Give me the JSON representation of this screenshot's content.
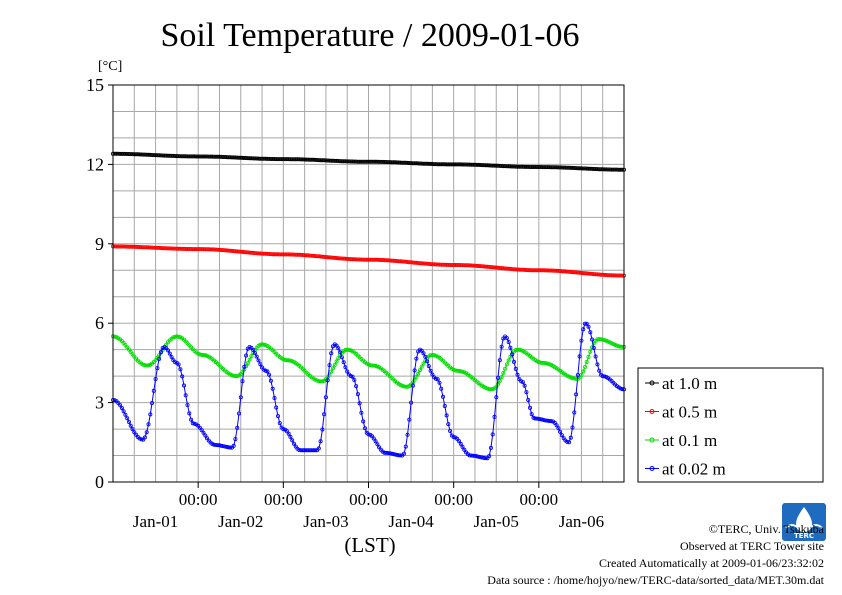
{
  "chart_data": {
    "type": "line",
    "title": "Soil Temperature / 2009-01-06",
    "ylabel": "[°C]",
    "xlabel": "(LST)",
    "ylim": [
      0,
      15
    ],
    "yticks": [
      "0",
      "3",
      "6",
      "9",
      "12",
      "15"
    ],
    "x_time_labels": [
      "00:00",
      "00:00",
      "00:00",
      "00:00",
      "00:00"
    ],
    "x_date_labels": [
      "Jan-01",
      "Jan-02",
      "Jan-03",
      "Jan-04",
      "Jan-05",
      "Jan-06"
    ],
    "x_range_days": [
      0,
      6
    ],
    "grid": true,
    "legend_placement": "right",
    "series": [
      {
        "name": "at 1.0 m",
        "color": "#000000",
        "x": [
          0,
          1,
          2,
          3,
          4,
          5,
          6
        ],
        "y": [
          12.4,
          12.3,
          12.2,
          12.1,
          12.0,
          11.9,
          11.8
        ]
      },
      {
        "name": "at 0.5 m",
        "color": "#ff0000",
        "x": [
          0,
          1,
          2,
          3,
          4,
          5,
          6
        ],
        "y": [
          8.9,
          8.8,
          8.6,
          8.4,
          8.2,
          8.0,
          7.8
        ]
      },
      {
        "name": "at 0.1 m",
        "color": "#00dd00",
        "x": [
          0,
          0.4,
          0.75,
          1.05,
          1.45,
          1.75,
          2.05,
          2.45,
          2.75,
          3.05,
          3.45,
          3.75,
          4.05,
          4.45,
          4.75,
          5.05,
          5.45,
          5.7,
          6.0
        ],
        "y": [
          5.5,
          4.4,
          5.5,
          4.8,
          4.0,
          5.2,
          4.6,
          3.8,
          5.0,
          4.4,
          3.6,
          4.8,
          4.2,
          3.5,
          5.0,
          4.5,
          3.9,
          5.4,
          5.1
        ]
      },
      {
        "name": "at 0.02 m",
        "color": "#0000ff",
        "x": [
          0,
          0.35,
          0.6,
          0.75,
          0.95,
          1.2,
          1.4,
          1.6,
          1.8,
          2.0,
          2.2,
          2.4,
          2.6,
          2.8,
          3.0,
          3.2,
          3.4,
          3.6,
          3.8,
          4.0,
          4.2,
          4.4,
          4.6,
          4.8,
          4.95,
          5.15,
          5.35,
          5.55,
          5.75,
          6.0
        ],
        "y": [
          3.1,
          1.6,
          5.1,
          4.5,
          2.2,
          1.4,
          1.3,
          5.1,
          4.2,
          2.0,
          1.2,
          1.2,
          5.2,
          4.0,
          1.8,
          1.1,
          1.0,
          5.0,
          3.9,
          1.7,
          1.0,
          0.9,
          5.5,
          3.8,
          2.4,
          2.3,
          1.5,
          6.0,
          4.0,
          3.5
        ]
      }
    ]
  },
  "credits": {
    "org": "©TERC, Univ. Tsukuba",
    "site": "Observed at TERC Tower site",
    "created": "Created Automatically at 2009-01-06/23:32:02",
    "source": "Data source : /home/hojyo/new/TERC-data/sorted_data/MET.30m.dat",
    "logo_text": "TERC"
  }
}
